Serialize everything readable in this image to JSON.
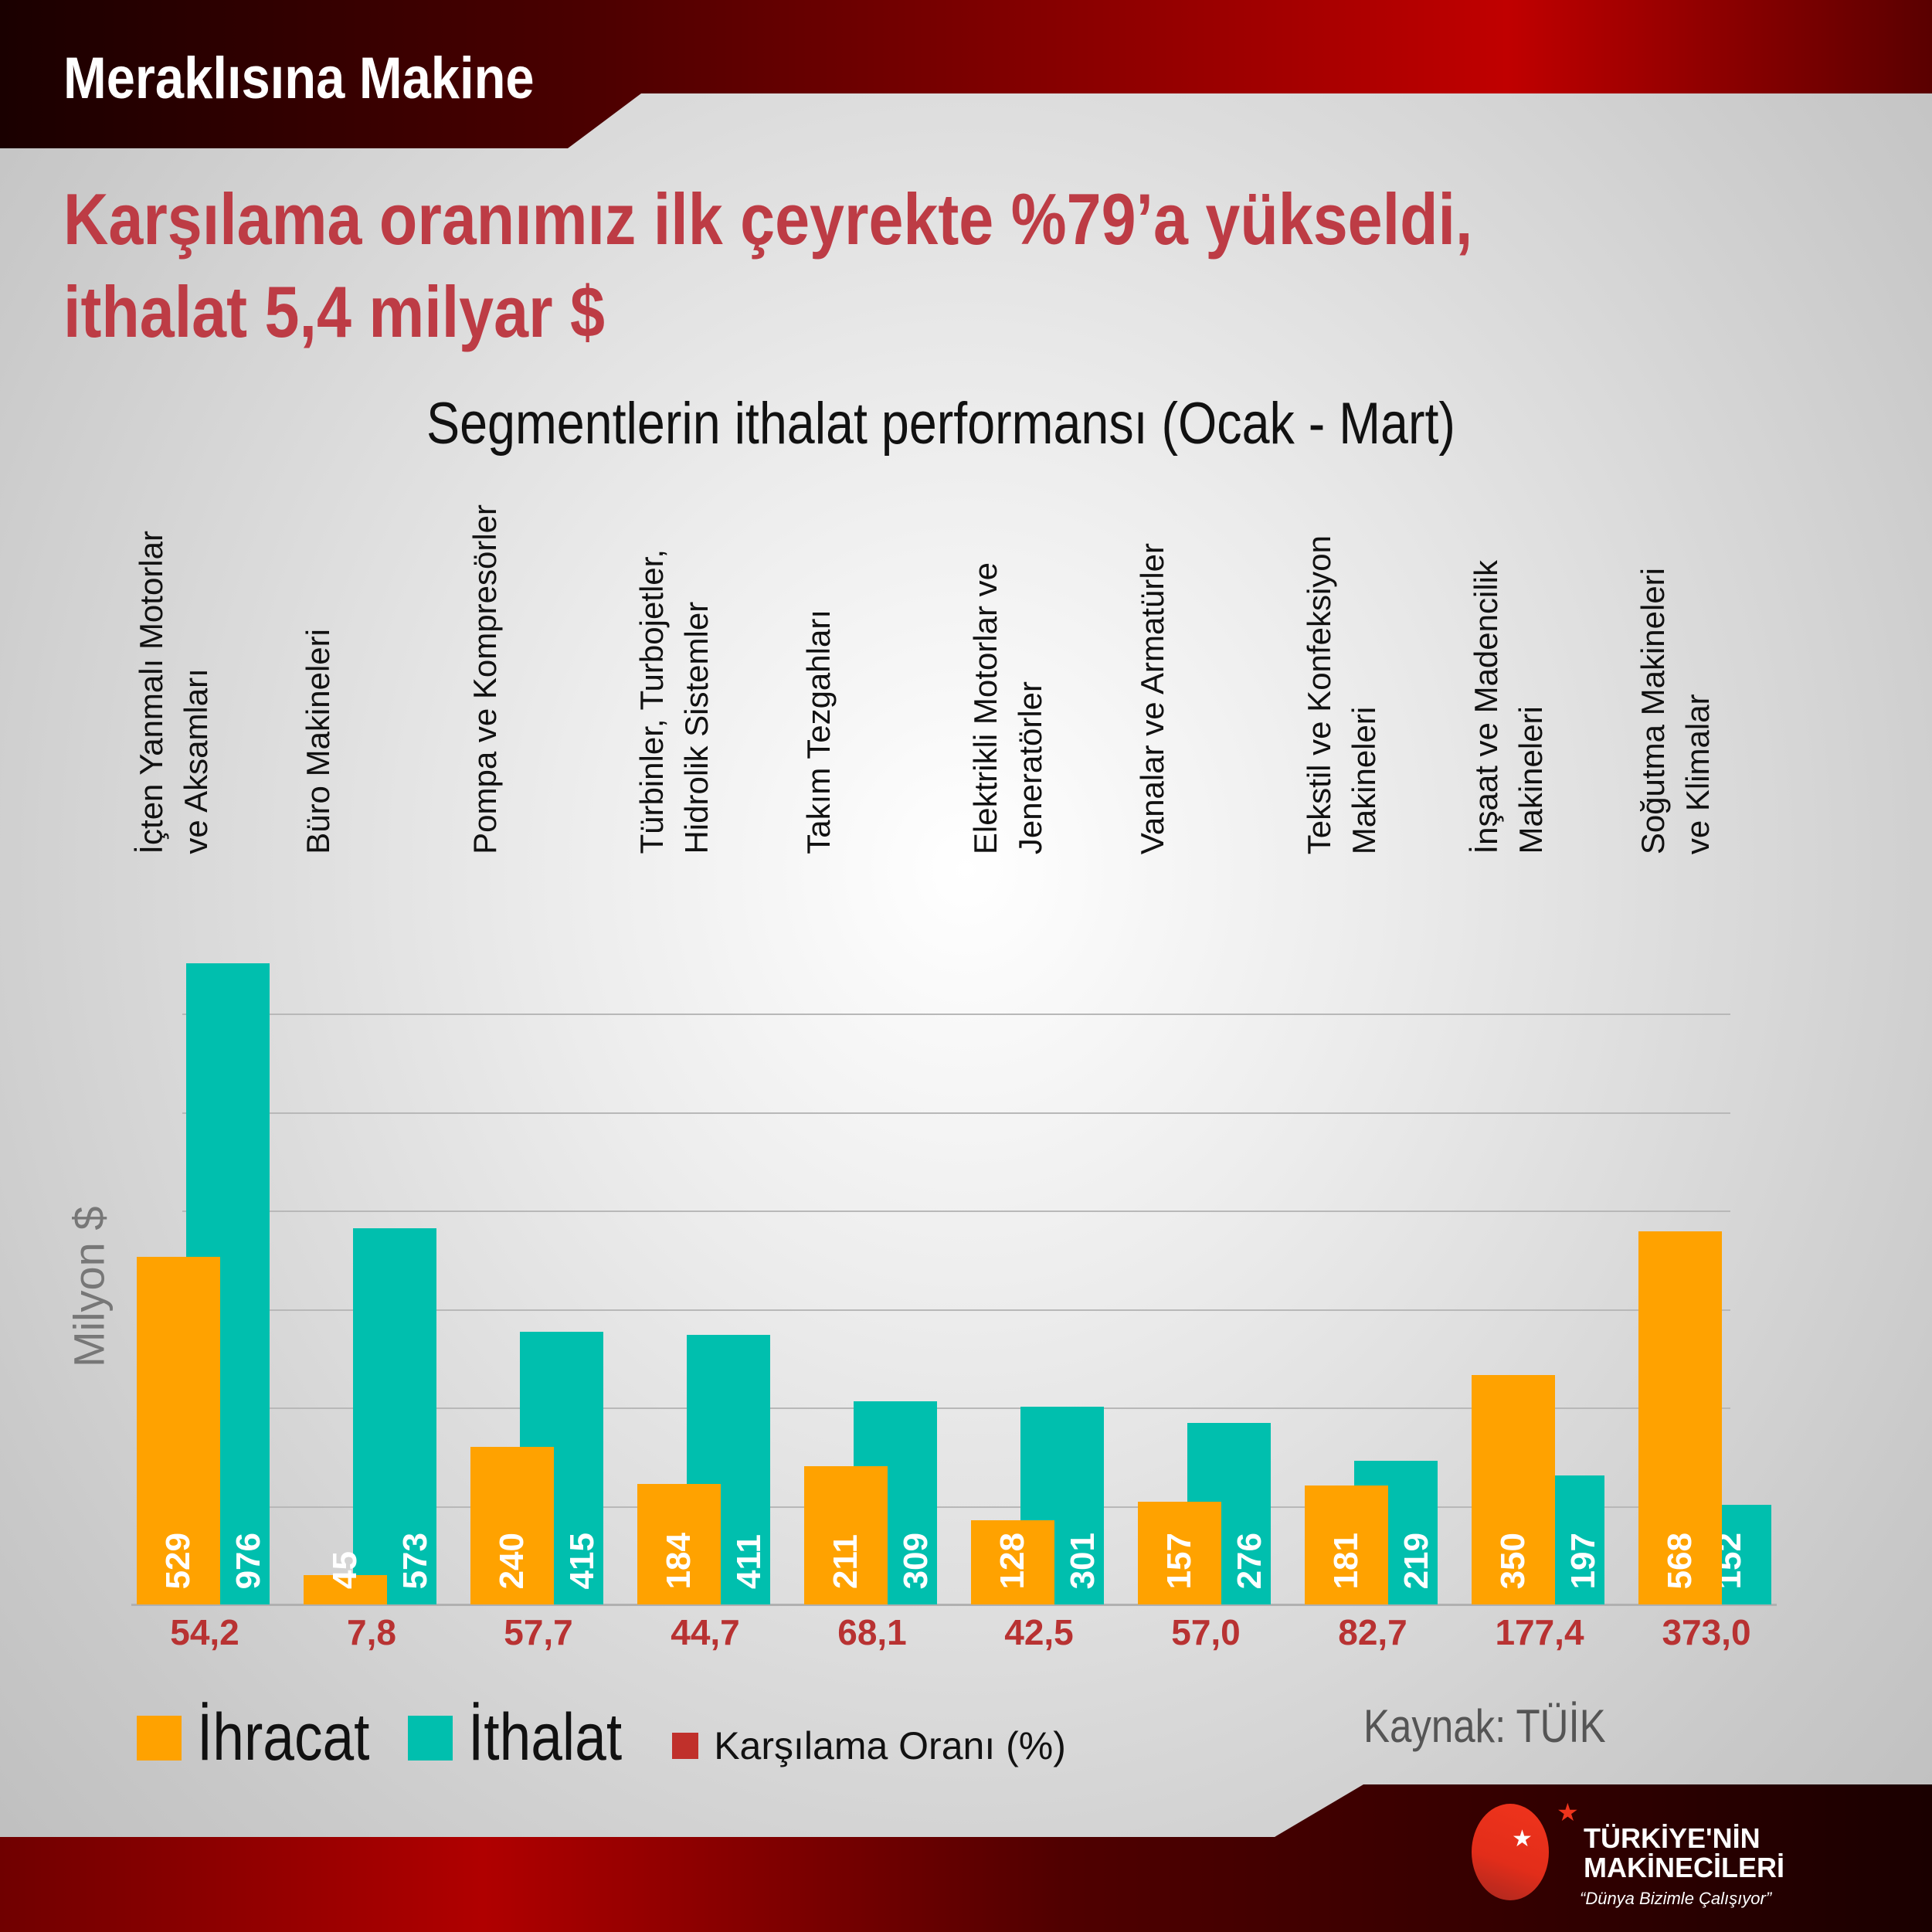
{
  "header": {
    "brand": "Meraklısına Makine",
    "title_line1": "Karşılama oranımız ilk çeyrekte %79’a yükseldi,",
    "title_line2": "ithalat 5,4 milyar $"
  },
  "chart_data": {
    "type": "bar",
    "title": "Segmentlerin ithalat performansı (Ocak - Mart)",
    "ylabel": "Milyon $",
    "ylim": [
      0,
      1000
    ],
    "gridlines": [
      150,
      300,
      450,
      600,
      750,
      900
    ],
    "categories": [
      "İçten Yanmalı Motorlar\nve Aksamları",
      "Büro Makineleri",
      "Pompa ve Kompresörler",
      "Türbinler, Turbojetler,\nHidrolik Sistemler",
      "Takım Tezgahları",
      "Elektrikli Motorlar ve\nJeneratörler",
      "Vanalar ve Armatürler",
      "Tekstil ve Konfeksiyon\nMakineleri",
      "İnşaat ve Madencilik\nMakineleri",
      "Soğutma Makineleri\nve Klimalar"
    ],
    "series": [
      {
        "name": "İhracat",
        "color": "#ffa200",
        "values": [
          529,
          45,
          240,
          184,
          211,
          128,
          157,
          181,
          350,
          568
        ]
      },
      {
        "name": "İthalat",
        "color": "#00bfae",
        "values": [
          976,
          573,
          415,
          411,
          309,
          301,
          276,
          219,
          197,
          152
        ]
      }
    ],
    "ratio": {
      "name": "Karşılama Oranı (%)",
      "color": "#c0302b",
      "values": [
        "54,2",
        "7,8",
        "57,7",
        "44,7",
        "68,1",
        "42,5",
        "57,0",
        "82,7",
        "177,4",
        "373,0"
      ]
    },
    "legend_position": "bottom-left"
  },
  "source": "Kaynak: TÜİK",
  "logo": {
    "line1": "TÜRKİYE'NİN",
    "line2": "MAKİNECİLERİ",
    "slogan": "“Dünya Bizimle Çalışıyor”"
  }
}
